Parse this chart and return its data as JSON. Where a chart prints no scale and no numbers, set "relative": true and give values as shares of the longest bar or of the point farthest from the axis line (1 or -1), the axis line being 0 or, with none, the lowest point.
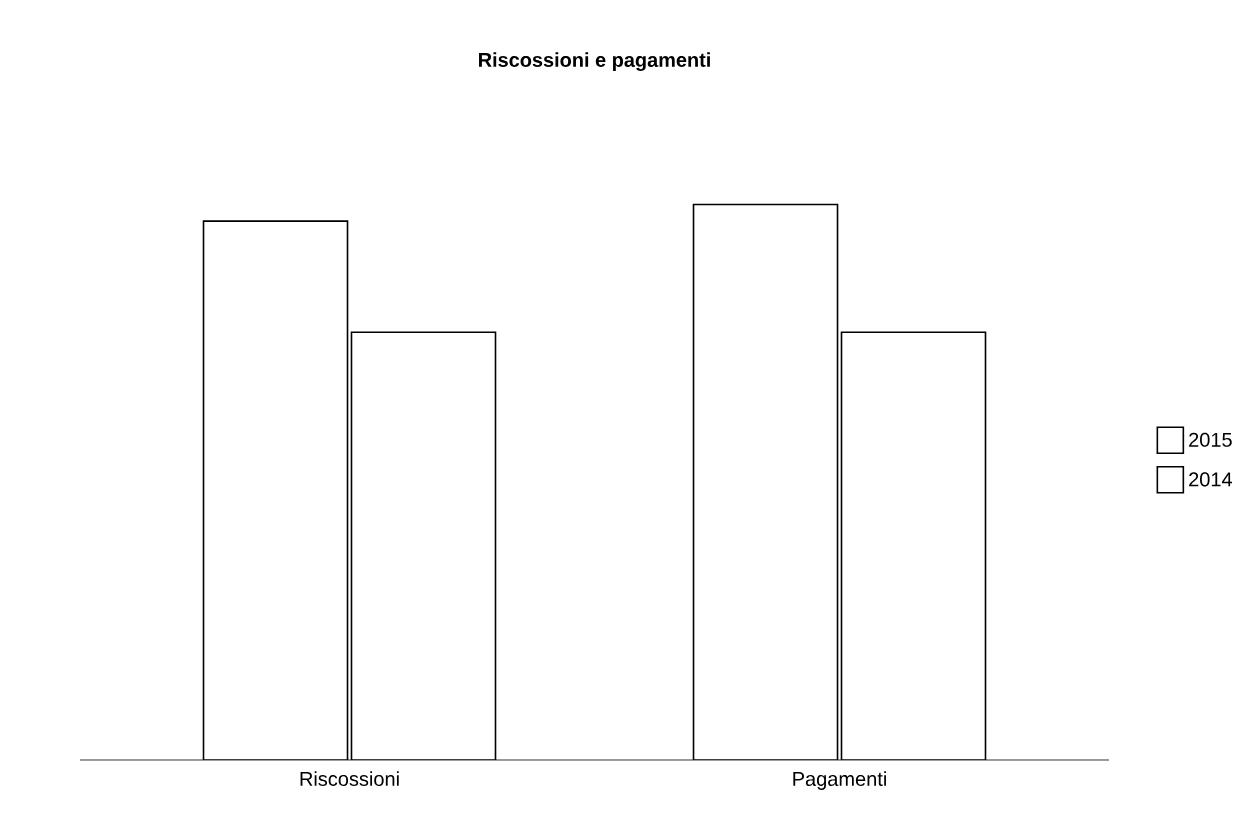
{
  "chart_data": {
    "type": "bar",
    "title": "Riscossioni e pagamenti",
    "relative": true,
    "legend": "right",
    "categories": [
      "Riscossioni",
      "Pagamenti"
    ],
    "series": [
      {
        "name": "2015",
        "color": "#ffffff",
        "values": [
          0.97,
          1
        ]
      },
      {
        "name": "2014",
        "color": "#ffffff",
        "values": [
          0.77,
          0.77
        ]
      }
    ]
  }
}
